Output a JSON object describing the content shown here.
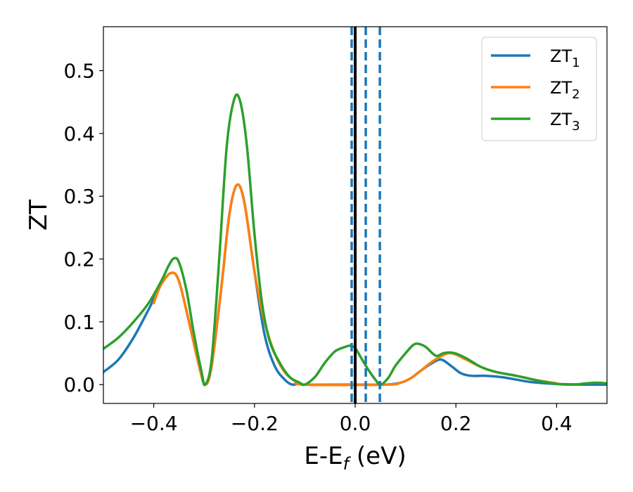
{
  "chart_data": {
    "type": "line",
    "xlabel": "E-E",
    "xlabel_sub": "f",
    "xlabel_unit": " (eV)",
    "ylabel": "ZT",
    "xlim": [
      -0.5,
      0.5
    ],
    "ylim": [
      -0.03,
      0.57
    ],
    "x_ticks": [
      -0.4,
      -0.2,
      0.0,
      0.2,
      0.4
    ],
    "x_tick_labels": [
      "−0.4",
      "−0.2",
      "0.0",
      "0.2",
      "0.4"
    ],
    "y_ticks": [
      0.0,
      0.1,
      0.2,
      0.3,
      0.4,
      0.5
    ],
    "y_tick_labels": [
      "0.0",
      "0.1",
      "0.2",
      "0.3",
      "0.4",
      "0.5"
    ],
    "grid": false,
    "legend_position": "top-right",
    "series": [
      {
        "name": "ZT",
        "name_sub": "1",
        "color": "#1f77b4",
        "points": [
          [
            -0.5,
            0.02
          ],
          [
            -0.47,
            0.04
          ],
          [
            -0.44,
            0.075
          ],
          [
            -0.41,
            0.12
          ],
          [
            -0.385,
            0.16
          ],
          [
            -0.365,
            0.178
          ],
          [
            -0.35,
            0.165
          ],
          [
            -0.33,
            0.1
          ],
          [
            -0.31,
            0.03
          ],
          [
            -0.298,
            0.0
          ],
          [
            -0.285,
            0.03
          ],
          [
            -0.265,
            0.16
          ],
          [
            -0.25,
            0.27
          ],
          [
            -0.235,
            0.318
          ],
          [
            -0.22,
            0.29
          ],
          [
            -0.2,
            0.18
          ],
          [
            -0.18,
            0.08
          ],
          [
            -0.16,
            0.03
          ],
          [
            -0.14,
            0.008
          ],
          [
            -0.125,
            0.0
          ],
          [
            -0.11,
            0.002
          ],
          [
            -0.1,
            0.0
          ],
          [
            0.0,
            0.0
          ],
          [
            0.06,
            0.0
          ],
          [
            0.09,
            0.003
          ],
          [
            0.11,
            0.01
          ],
          [
            0.13,
            0.022
          ],
          [
            0.15,
            0.033
          ],
          [
            0.17,
            0.04
          ],
          [
            0.19,
            0.03
          ],
          [
            0.21,
            0.018
          ],
          [
            0.23,
            0.014
          ],
          [
            0.26,
            0.014
          ],
          [
            0.29,
            0.012
          ],
          [
            0.32,
            0.008
          ],
          [
            0.35,
            0.004
          ],
          [
            0.4,
            0.001
          ],
          [
            0.45,
            0.0
          ],
          [
            0.5,
            0.0
          ]
        ]
      },
      {
        "name": "ZT",
        "name_sub": "2",
        "color": "#ff7f0e",
        "points": [
          [
            -0.4,
            0.13
          ],
          [
            -0.385,
            0.16
          ],
          [
            -0.365,
            0.178
          ],
          [
            -0.35,
            0.165
          ],
          [
            -0.33,
            0.1
          ],
          [
            -0.31,
            0.03
          ],
          [
            -0.298,
            0.0
          ],
          [
            -0.285,
            0.03
          ],
          [
            -0.265,
            0.16
          ],
          [
            -0.25,
            0.27
          ],
          [
            -0.235,
            0.318
          ],
          [
            -0.22,
            0.29
          ],
          [
            -0.2,
            0.18
          ],
          [
            -0.18,
            0.1
          ],
          [
            -0.16,
            0.05
          ],
          [
            -0.14,
            0.02
          ],
          [
            -0.12,
            0.006
          ],
          [
            -0.1,
            0.0
          ],
          [
            0.06,
            0.0
          ],
          [
            0.09,
            0.003
          ],
          [
            0.11,
            0.01
          ],
          [
            0.13,
            0.022
          ],
          [
            0.15,
            0.035
          ],
          [
            0.17,
            0.045
          ],
          [
            0.185,
            0.05
          ],
          [
            0.2,
            0.048
          ],
          [
            0.22,
            0.04
          ],
          [
            0.25,
            0.028
          ],
          [
            0.28,
            0.02
          ],
          [
            0.32,
            0.014
          ],
          [
            0.36,
            0.007
          ],
          [
            0.4,
            0.002
          ]
        ]
      },
      {
        "name": "ZT",
        "name_sub": "3",
        "color": "#2ca02c",
        "points": [
          [
            -0.5,
            0.057
          ],
          [
            -0.47,
            0.075
          ],
          [
            -0.44,
            0.1
          ],
          [
            -0.41,
            0.13
          ],
          [
            -0.385,
            0.165
          ],
          [
            -0.37,
            0.19
          ],
          [
            -0.36,
            0.201
          ],
          [
            -0.35,
            0.195
          ],
          [
            -0.335,
            0.15
          ],
          [
            -0.32,
            0.08
          ],
          [
            -0.305,
            0.02
          ],
          [
            -0.298,
            0.0
          ],
          [
            -0.285,
            0.04
          ],
          [
            -0.27,
            0.2
          ],
          [
            -0.255,
            0.38
          ],
          [
            -0.24,
            0.455
          ],
          [
            -0.228,
            0.45
          ],
          [
            -0.215,
            0.38
          ],
          [
            -0.2,
            0.24
          ],
          [
            -0.185,
            0.13
          ],
          [
            -0.17,
            0.07
          ],
          [
            -0.15,
            0.035
          ],
          [
            -0.13,
            0.012
          ],
          [
            -0.11,
            0.003
          ],
          [
            -0.1,
            0.0
          ],
          [
            -0.08,
            0.012
          ],
          [
            -0.06,
            0.035
          ],
          [
            -0.04,
            0.053
          ],
          [
            -0.02,
            0.06
          ],
          [
            -0.01,
            0.062
          ],
          [
            0.0,
            0.058
          ],
          [
            0.01,
            0.045
          ],
          [
            0.025,
            0.025
          ],
          [
            0.04,
            0.008
          ],
          [
            0.05,
            0.0
          ],
          [
            0.065,
            0.01
          ],
          [
            0.08,
            0.03
          ],
          [
            0.1,
            0.05
          ],
          [
            0.115,
            0.063
          ],
          [
            0.125,
            0.065
          ],
          [
            0.14,
            0.06
          ],
          [
            0.16,
            0.046
          ],
          [
            0.175,
            0.05
          ],
          [
            0.19,
            0.051
          ],
          [
            0.205,
            0.048
          ],
          [
            0.225,
            0.04
          ],
          [
            0.25,
            0.028
          ],
          [
            0.28,
            0.02
          ],
          [
            0.32,
            0.014
          ],
          [
            0.36,
            0.007
          ],
          [
            0.4,
            0.001
          ],
          [
            0.43,
            0.0
          ],
          [
            0.46,
            0.002
          ],
          [
            0.48,
            0.003
          ],
          [
            0.5,
            0.002
          ]
        ]
      }
    ],
    "vertical_lines": [
      {
        "x": 0.0,
        "color": "#000000",
        "style": "solid"
      },
      {
        "x": -0.007,
        "color": "#1f77b4",
        "style": "dashed"
      },
      {
        "x": 0.021,
        "color": "#1f77b4",
        "style": "dashed"
      },
      {
        "x": 0.049,
        "color": "#1f77b4",
        "style": "dashed"
      }
    ]
  }
}
